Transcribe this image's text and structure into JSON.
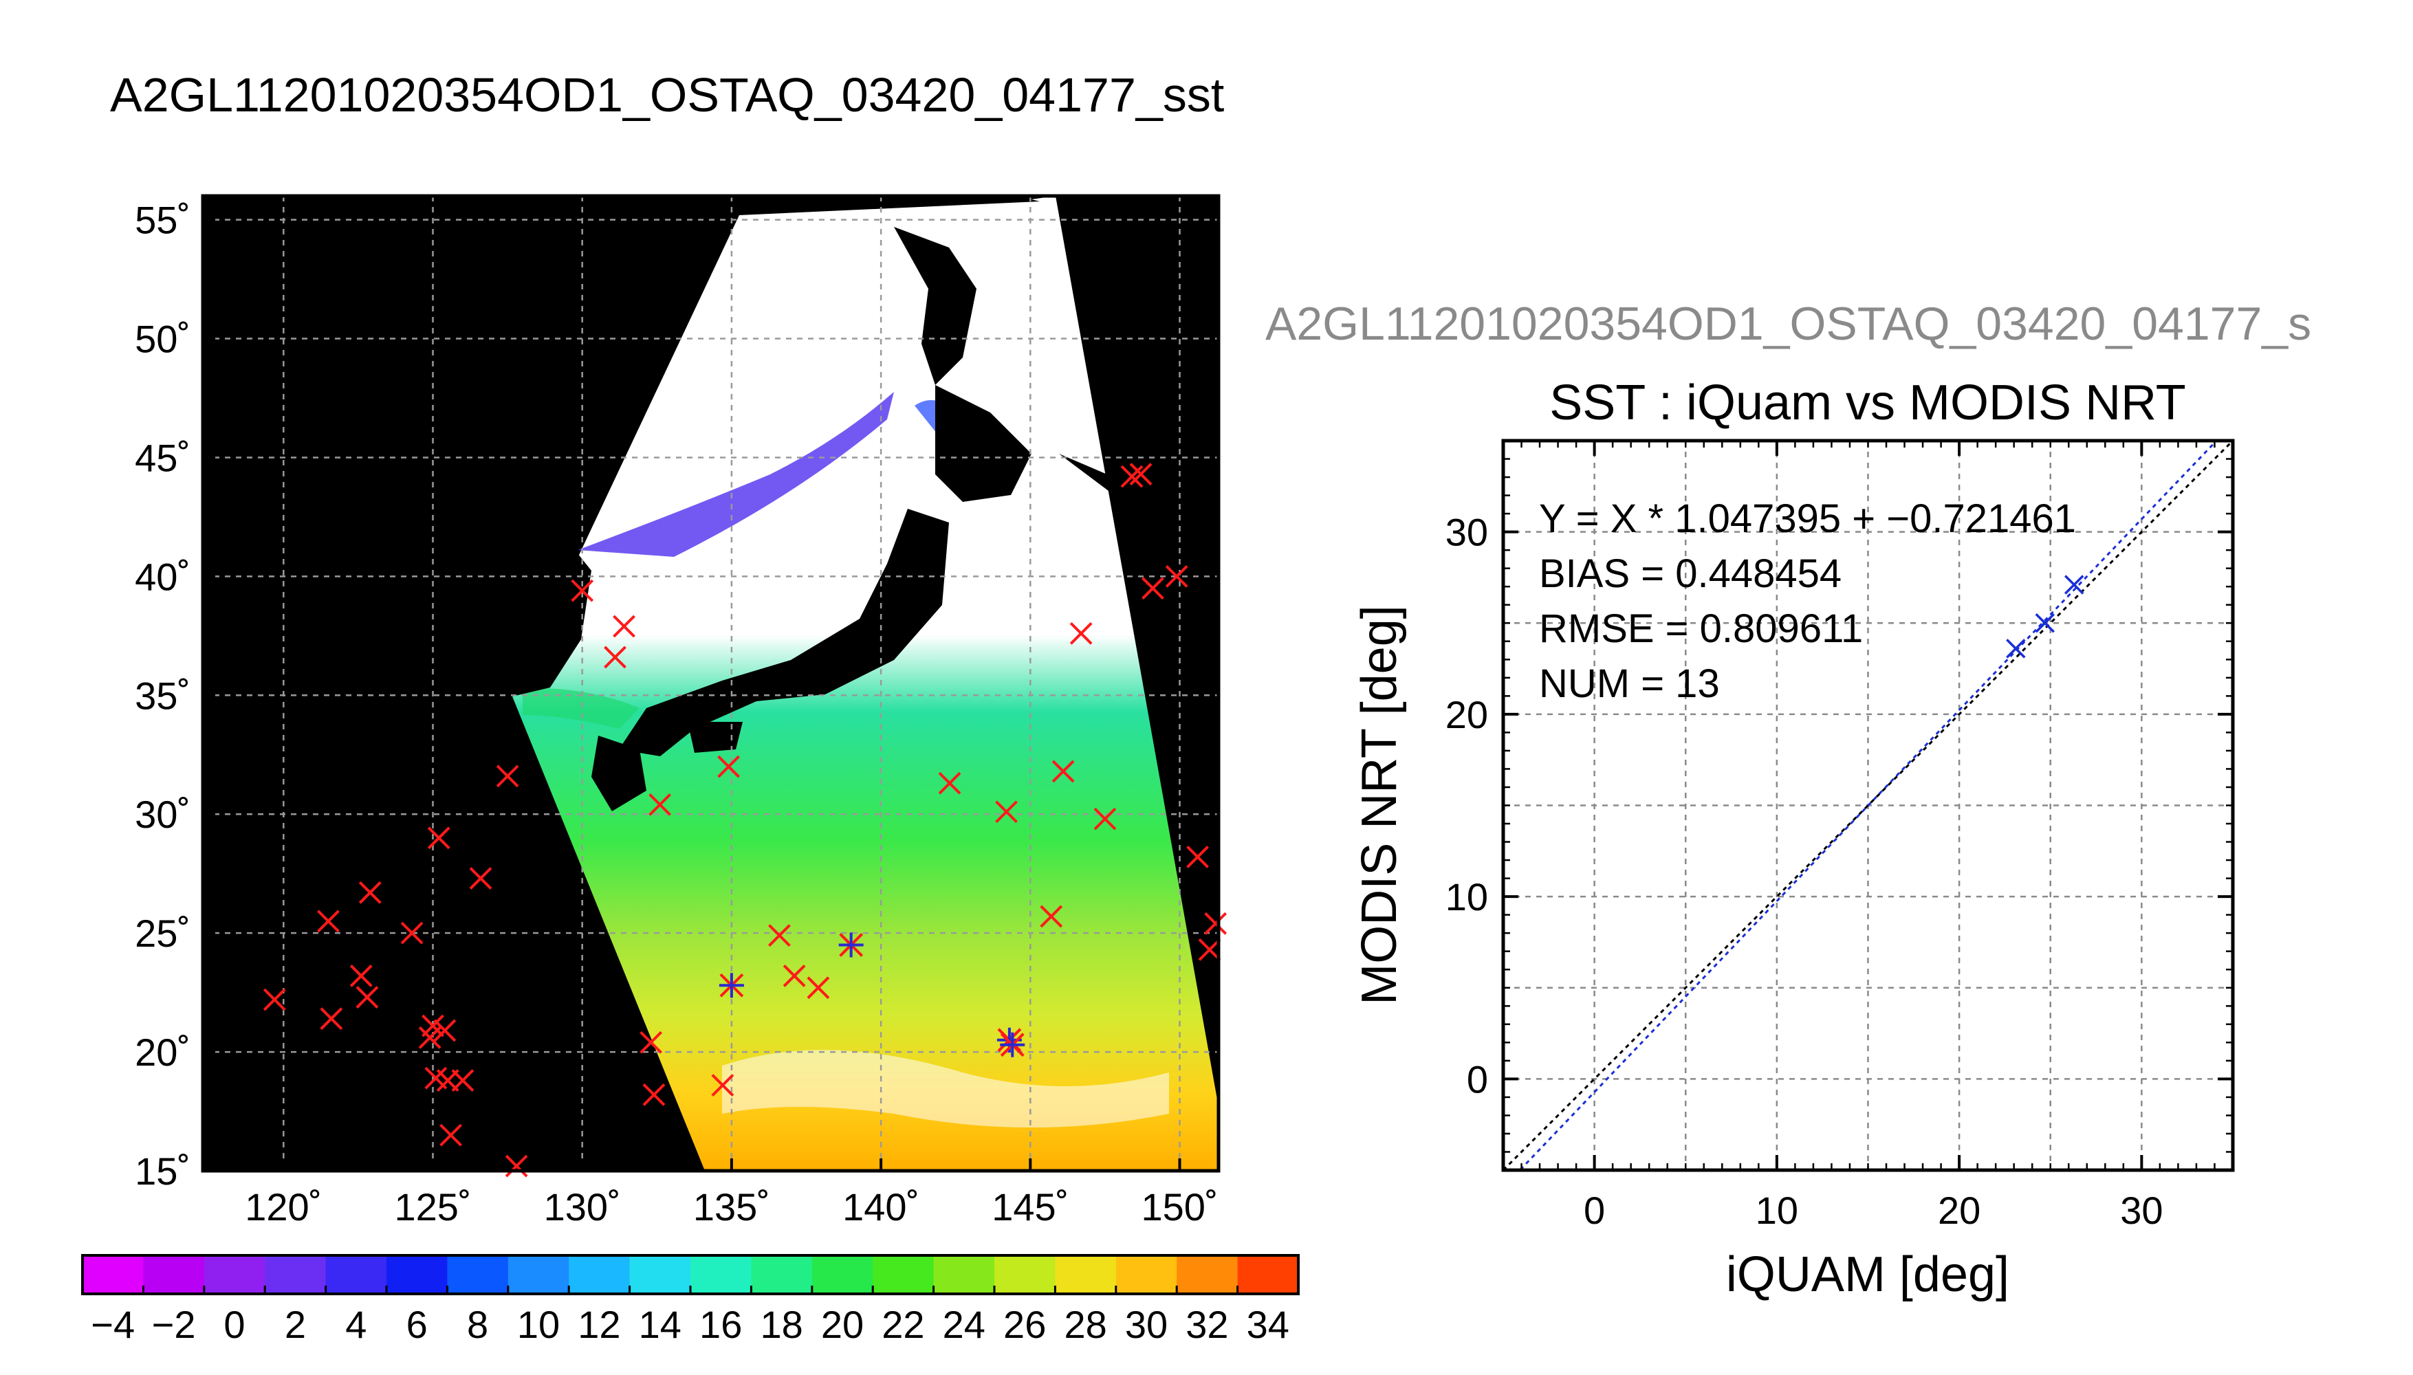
{
  "header": {
    "title": "A2GL11201020354OD1_OSTAQ_03420_04177_sst",
    "subtitle": "A2GL11201020354OD1_OSTAQ_03420_04177_s"
  },
  "chart_data": [
    {
      "type": "map",
      "description_source": "SST swath map with in-situ matchups",
      "lon_ticks": [
        120,
        125,
        130,
        135,
        140,
        145,
        150
      ],
      "lon_tick_labels": [
        "120˚",
        "125˚",
        "130˚",
        "135˚",
        "140˚",
        "145˚",
        "150˚"
      ],
      "lat_ticks": [
        15,
        20,
        25,
        30,
        35,
        40,
        45,
        50,
        55
      ],
      "lat_tick_labels": [
        "15˚",
        "20˚",
        "25˚",
        "30˚",
        "35˚",
        "40˚",
        "45˚",
        "50˚",
        "55˚"
      ],
      "lon_range": [
        117.3,
        151.3
      ],
      "lat_range": [
        15.0,
        56.0
      ],
      "grid": true,
      "insitu_points": [
        [
          119.7,
          22.2
        ],
        [
          121.6,
          21.4
        ],
        [
          121.5,
          25.5
        ],
        [
          122.6,
          23.2
        ],
        [
          122.8,
          22.3
        ],
        [
          122.9,
          26.7
        ],
        [
          124.3,
          25.0
        ],
        [
          124.9,
          20.6
        ],
        [
          125.0,
          21.1
        ],
        [
          125.1,
          18.9
        ],
        [
          125.2,
          29.0
        ],
        [
          125.4,
          20.9
        ],
        [
          125.5,
          18.8
        ],
        [
          125.6,
          16.5
        ],
        [
          126.0,
          18.8
        ],
        [
          126.6,
          27.3
        ],
        [
          127.5,
          31.6
        ],
        [
          127.8,
          15.2
        ],
        [
          130.0,
          39.4
        ],
        [
          131.1,
          36.6
        ],
        [
          131.4,
          37.9
        ],
        [
          132.3,
          20.4
        ],
        [
          132.4,
          18.2
        ],
        [
          132.6,
          30.4
        ],
        [
          134.7,
          18.6
        ],
        [
          134.9,
          32.0
        ],
        [
          136.6,
          24.9
        ],
        [
          137.1,
          23.2
        ],
        [
          142.3,
          31.3
        ],
        [
          144.2,
          30.1
        ],
        [
          146.1,
          31.8
        ],
        [
          145.7,
          25.7
        ],
        [
          146.7,
          37.6
        ],
        [
          147.5,
          29.8
        ],
        [
          148.4,
          44.2
        ],
        [
          148.7,
          44.3
        ],
        [
          149.1,
          39.5
        ],
        [
          149.9,
          40.0
        ],
        [
          150.6,
          28.2
        ],
        [
          151.0,
          24.3
        ],
        [
          151.2,
          25.4
        ],
        [
          137.9,
          22.7
        ]
      ],
      "matchup_points": [
        [
          135.0,
          22.8
        ],
        [
          139.0,
          24.5
        ],
        [
          144.3,
          20.5
        ],
        [
          144.4,
          20.3
        ]
      ]
    },
    {
      "type": "scatter",
      "title": "SST : iQuam vs MODIS NRT",
      "xlabel": "iQUAM [deg]",
      "ylabel": "MODIS NRT [deg]",
      "xlim": [
        -5,
        35
      ],
      "ylim": [
        -5,
        35
      ],
      "xticks": [
        0,
        10,
        20,
        30
      ],
      "yticks": [
        0,
        10,
        20,
        30
      ],
      "grid": true,
      "stats": [
        "Y = X * 1.047395 + −0.721461",
        "BIAS = 0.448454",
        "RMSE = 0.809611",
        "NUM = 13"
      ],
      "fit": {
        "slope": 1.047395,
        "intercept": -0.721461
      },
      "points": [
        {
          "x": 23.1,
          "y": 23.6
        },
        {
          "x": 24.7,
          "y": 25.0
        },
        {
          "x": 26.3,
          "y": 27.1
        }
      ]
    },
    {
      "type": "colorbar",
      "tick_labels": [
        "−4",
        "−2",
        "0",
        "2",
        "4",
        "6",
        "8",
        "10",
        "12",
        "14",
        "16",
        "18",
        "20",
        "22",
        "24",
        "26",
        "28",
        "30",
        "32",
        "34"
      ],
      "range": [
        -5,
        35
      ],
      "segments": 20
    }
  ]
}
